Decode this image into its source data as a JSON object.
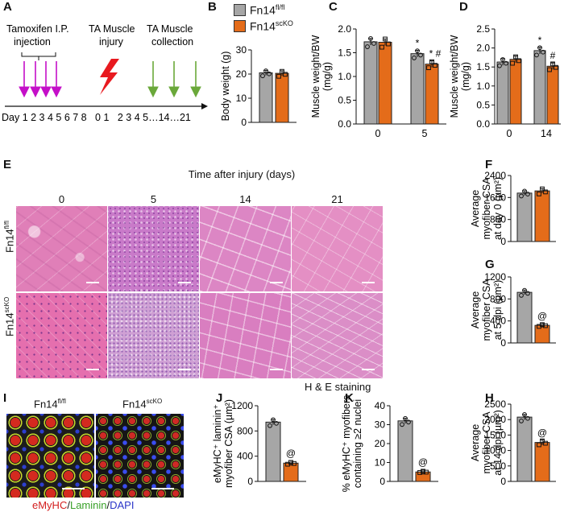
{
  "panels": {
    "A": {
      "label": "A",
      "tamoxifen": [
        "Tamoxifen I.P.",
        "injection"
      ],
      "injury": [
        "TA Muscle",
        "injury"
      ],
      "collection": [
        "TA Muscle",
        "collection"
      ],
      "timeline": "Day 1 2 3 4 5 6 7 8   0 1   2 3 4 5…14…21"
    },
    "B": {
      "label": "B"
    },
    "C": {
      "label": "C"
    },
    "D": {
      "label": "D"
    },
    "E": {
      "label": "E",
      "title": "Time after injury (days)",
      "columns": [
        "0",
        "5",
        "14",
        "21"
      ],
      "rows": [
        "Fn14fl/fl",
        "Fn14scKO"
      ],
      "stain": "H & E staining"
    },
    "F": {
      "label": "F"
    },
    "G": {
      "label": "G"
    },
    "H": {
      "label": "H"
    },
    "I": {
      "label": "I",
      "left_title": "Fn14fl/fl",
      "right_title": "Fn14scKO",
      "stain_parts": [
        "eMyHC",
        "/",
        "Laminin",
        "/",
        "DAPI"
      ],
      "stain_colors": [
        "#d42020",
        "#222222",
        "#3aa12a",
        "#222222",
        "#2a35c8"
      ]
    },
    "J": {
      "label": "J"
    },
    "K": {
      "label": "K"
    }
  },
  "legend": {
    "entries": [
      "Fn14fl/fl",
      "Fn14scKO"
    ],
    "colors": [
      "#a6a6a6",
      "#e46c1a"
    ]
  },
  "chart_data": [
    {
      "id": "B",
      "type": "bar",
      "ylabel": "Body weight (g)",
      "ylim": [
        0,
        30
      ],
      "yticks": [
        0,
        10,
        20,
        30
      ],
      "categories": [
        ""
      ],
      "series": [
        {
          "name": "Fn14fl/fl",
          "values": [
            20.5
          ]
        },
        {
          "name": "Fn14scKO",
          "values": [
            20.3
          ]
        }
      ],
      "annotations": []
    },
    {
      "id": "C",
      "type": "bar",
      "ylabel": "Muscle weight/BW (mg/g)",
      "ylim": [
        0,
        2.0
      ],
      "yticks": [
        0.0,
        0.5,
        1.0,
        1.5,
        2.0
      ],
      "categories": [
        "0",
        "5"
      ],
      "series": [
        {
          "name": "Fn14fl/fl",
          "values": [
            1.73,
            1.48
          ]
        },
        {
          "name": "Fn14scKO",
          "values": [
            1.72,
            1.26
          ]
        }
      ],
      "annotations": [
        {
          "category": "5",
          "series": 0,
          "text": "*"
        },
        {
          "category": "5",
          "series": 1,
          "text": "* #"
        }
      ]
    },
    {
      "id": "D",
      "type": "bar",
      "ylabel": "Muscle weight/BW (mg/g)",
      "ylim": [
        0,
        2.5
      ],
      "yticks": [
        0.0,
        0.5,
        1.0,
        1.5,
        2.0,
        2.5
      ],
      "categories": [
        "0",
        "14"
      ],
      "series": [
        {
          "name": "Fn14fl/fl",
          "values": [
            1.63,
            1.93
          ]
        },
        {
          "name": "Fn14scKO",
          "values": [
            1.7,
            1.52
          ]
        }
      ],
      "annotations": [
        {
          "category": "14",
          "series": 0,
          "text": "*"
        },
        {
          "category": "14",
          "series": 1,
          "text": "#"
        }
      ]
    },
    {
      "id": "F",
      "type": "bar",
      "ylabel": "Average myofiber CSA at day 0 (µm²)",
      "ylim": [
        0,
        2400
      ],
      "yticks": [
        0,
        800,
        1600,
        2400
      ],
      "categories": [
        ""
      ],
      "series": [
        {
          "name": "Fn14fl/fl",
          "values": [
            1760
          ]
        },
        {
          "name": "Fn14scKO",
          "values": [
            1840
          ]
        }
      ],
      "annotations": []
    },
    {
      "id": "G",
      "type": "bar",
      "ylabel": "Average myofiber CSA at 5 dpi (µm²)",
      "ylim": [
        0,
        1200
      ],
      "yticks": [
        0,
        400,
        800,
        1200
      ],
      "categories": [
        ""
      ],
      "series": [
        {
          "name": "Fn14fl/fl",
          "values": [
            920
          ]
        },
        {
          "name": "Fn14scKO",
          "values": [
            320
          ]
        }
      ],
      "annotations": [
        {
          "category": "",
          "series": 1,
          "text": "@"
        }
      ]
    },
    {
      "id": "H",
      "type": "bar",
      "ylabel": "Average myofiber CSA at 14 dpi (µm²)",
      "ylim": [
        0,
        2500
      ],
      "yticks": [
        0,
        500,
        1000,
        1500,
        2000,
        2500
      ],
      "categories": [
        ""
      ],
      "series": [
        {
          "name": "Fn14fl/fl",
          "values": [
            2080
          ]
        },
        {
          "name": "Fn14scKO",
          "values": [
            1260
          ]
        }
      ],
      "annotations": [
        {
          "category": "",
          "series": 1,
          "text": "@"
        }
      ]
    },
    {
      "id": "J",
      "type": "bar",
      "ylabel": "eMyHC⁺ laminin⁺ myofiber CSA (µm²)",
      "ylim": [
        0,
        1200
      ],
      "yticks": [
        0,
        400,
        800,
        1200
      ],
      "categories": [
        ""
      ],
      "series": [
        {
          "name": "Fn14fl/fl",
          "values": [
            940
          ]
        },
        {
          "name": "Fn14scKO",
          "values": [
            290
          ]
        }
      ],
      "annotations": [
        {
          "category": "",
          "series": 1,
          "text": "@"
        }
      ]
    },
    {
      "id": "K",
      "type": "bar",
      "ylabel": "% eMyHC⁺ myofibers containing ≥2 nuclei",
      "ylim": [
        0,
        40
      ],
      "yticks": [
        0,
        10,
        20,
        30,
        40
      ],
      "categories": [
        ""
      ],
      "series": [
        {
          "name": "Fn14fl/fl",
          "values": [
            32
          ]
        },
        {
          "name": "Fn14scKO",
          "values": [
            5
          ]
        }
      ],
      "annotations": [
        {
          "category": "",
          "series": 1,
          "text": "@"
        }
      ]
    }
  ]
}
